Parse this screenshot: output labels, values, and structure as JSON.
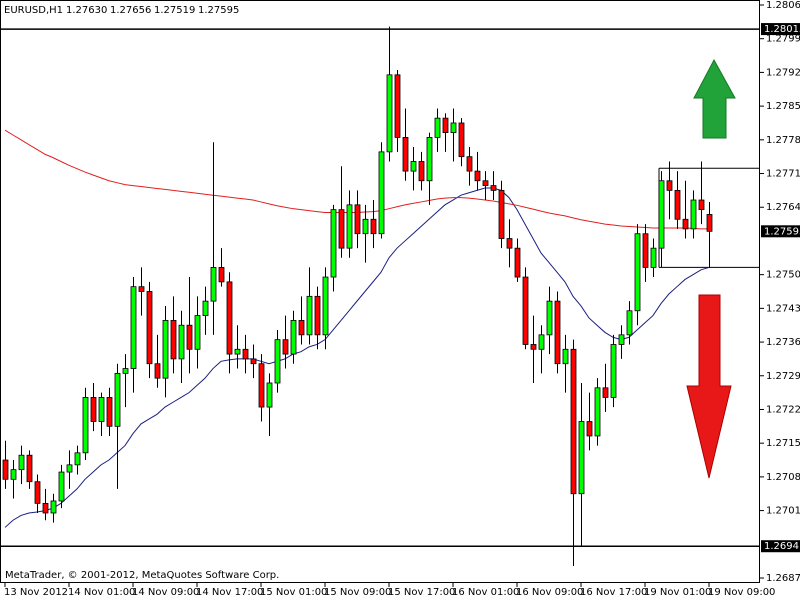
{
  "chart_data": {
    "type": "candlestick",
    "title": "EURUSD,H1",
    "quote": [
      "1.27630",
      "1.27656",
      "1.27519",
      "1.27595"
    ],
    "footer": "MetaTrader, © 2001-2012, MetaQuotes Software Corp.",
    "categories": [
      "13 Nov 2012",
      null,
      null,
      null,
      null,
      null,
      null,
      null,
      "14 Nov 01:00",
      null,
      null,
      null,
      null,
      null,
      null,
      null,
      "14 Nov 09:00",
      null,
      null,
      null,
      null,
      null,
      null,
      null,
      "14 Nov 17:00",
      null,
      null,
      null,
      null,
      null,
      null,
      null,
      "15 Nov 01:00",
      null,
      null,
      null,
      null,
      null,
      null,
      null,
      "15 Nov 09:00",
      null,
      null,
      null,
      null,
      null,
      null,
      null,
      "15 Nov 17:00",
      null,
      null,
      null,
      null,
      null,
      null,
      null,
      "16 Nov 01:00",
      null,
      null,
      null,
      null,
      null,
      null,
      null,
      "16 Nov 09:00",
      null,
      null,
      null,
      null,
      null,
      null,
      null,
      "16 Nov 17:00",
      null,
      null,
      null,
      null,
      null,
      null,
      null,
      "19 Nov 01:00",
      null,
      null,
      null,
      null,
      null,
      null,
      null,
      "19 Nov 09:00"
    ],
    "open": [
      1.2712,
      1.2708,
      1.271,
      1.2713,
      1.27075,
      1.2703,
      1.2701,
      1.27035,
      1.27095,
      1.2711,
      1.27135,
      1.2725,
      1.272,
      1.2725,
      1.2719,
      1.273,
      1.2731,
      1.2748,
      1.2747,
      1.2732,
      1.2729,
      1.2741,
      1.2733,
      1.274,
      1.2735,
      1.2742,
      1.2745,
      1.2752,
      1.2749,
      1.2734,
      1.2735,
      1.2733,
      1.2732,
      1.2723,
      1.2728,
      1.2737,
      1.2734,
      1.2741,
      1.2738,
      1.2746,
      1.2738,
      1.275,
      1.2764,
      1.2756,
      1.2765,
      1.2759,
      1.2762,
      1.2759,
      1.2776,
      1.2792,
      1.2779,
      1.2772,
      1.2774,
      1.277,
      1.2779,
      1.2783,
      1.278,
      1.2782,
      1.2775,
      1.2772,
      1.277,
      1.2769,
      1.2768,
      1.2758,
      1.2756,
      1.275,
      1.2736,
      1.2735,
      1.2738,
      1.2745,
      1.2732,
      1.2735,
      1.2705,
      1.272,
      1.2717,
      1.2727,
      1.2725,
      1.2736,
      1.2738,
      1.2743,
      1.2759,
      1.2752,
      1.2756,
      1.277,
      1.2768,
      1.2762,
      1.276,
      1.2766,
      1.2763
    ],
    "high": [
      1.2716,
      1.2712,
      1.2715,
      1.2714,
      1.2709,
      1.2706,
      1.2705,
      1.2711,
      1.2714,
      1.2715,
      1.2727,
      1.2728,
      1.2726,
      1.2727,
      1.2732,
      1.2734,
      1.275,
      1.2752,
      1.2749,
      1.2738,
      1.2744,
      1.2746,
      1.2743,
      1.275,
      1.2746,
      1.2748,
      1.2778,
      1.2756,
      1.2751,
      1.274,
      1.2738,
      1.2736,
      1.2734,
      1.273,
      1.2739,
      1.2742,
      1.2743,
      1.2746,
      1.2752,
      1.2748,
      1.2752,
      1.2765,
      1.2773,
      1.2768,
      1.2768,
      1.2765,
      1.2766,
      1.2778,
      1.2802,
      1.2793,
      1.2785,
      1.2777,
      1.2776,
      1.278,
      1.2785,
      1.2784,
      1.2785,
      1.2783,
      1.2777,
      1.2776,
      1.2772,
      1.2772,
      1.277,
      1.2762,
      1.2758,
      1.2752,
      1.2742,
      1.274,
      1.2748,
      1.2747,
      1.2738,
      1.2737,
      1.2728,
      1.2726,
      1.2729,
      1.2732,
      1.2738,
      1.274,
      1.2745,
      1.2761,
      1.2761,
      1.2758,
      1.2772,
      1.2774,
      1.2772,
      1.277,
      1.2768,
      1.2774,
      1.27656
    ],
    "low": [
      1.2706,
      1.2704,
      1.2707,
      1.2706,
      1.2701,
      1.26995,
      1.2699,
      1.2702,
      1.2706,
      1.2709,
      1.2712,
      1.2718,
      1.2717,
      1.2717,
      1.2706,
      1.2723,
      1.2726,
      1.2742,
      1.2729,
      1.2727,
      1.2725,
      1.273,
      1.2728,
      1.273,
      1.2731,
      1.2738,
      1.2738,
      1.2748,
      1.273,
      1.2731,
      1.273,
      1.2729,
      1.272,
      1.2717,
      1.2726,
      1.2731,
      1.2732,
      1.2736,
      1.2736,
      1.2735,
      1.2735,
      1.2747,
      1.2754,
      1.2754,
      1.2756,
      1.2753,
      1.2756,
      1.2758,
      1.2774,
      1.2776,
      1.277,
      1.2768,
      1.2768,
      1.2765,
      1.2776,
      1.2776,
      1.2774,
      1.2773,
      1.2769,
      1.2768,
      1.2766,
      1.2766,
      1.2756,
      1.2752,
      1.2749,
      1.2735,
      1.2728,
      1.273,
      1.2734,
      1.273,
      1.2726,
      1.269,
      1.2694,
      1.2714,
      1.2715,
      1.2722,
      1.2723,
      1.2733,
      1.2736,
      1.274,
      1.2749,
      1.275,
      1.2752,
      1.2762,
      1.276,
      1.2758,
      1.2758,
      1.2761,
      1.27519
    ],
    "close": [
      1.2708,
      1.271,
      1.2713,
      1.27075,
      1.2703,
      1.2701,
      1.27035,
      1.27095,
      1.2711,
      1.27135,
      1.2725,
      1.272,
      1.2725,
      1.2719,
      1.273,
      1.2731,
      1.2748,
      1.2747,
      1.2732,
      1.2729,
      1.2741,
      1.2733,
      1.274,
      1.2735,
      1.2742,
      1.2745,
      1.2752,
      1.2749,
      1.2734,
      1.2735,
      1.2733,
      1.2732,
      1.2723,
      1.2728,
      1.2737,
      1.2734,
      1.2741,
      1.2738,
      1.2746,
      1.2738,
      1.275,
      1.2764,
      1.2756,
      1.2765,
      1.2759,
      1.2762,
      1.2759,
      1.2776,
      1.2792,
      1.2779,
      1.2772,
      1.2774,
      1.277,
      1.2779,
      1.2783,
      1.278,
      1.2782,
      1.2775,
      1.2772,
      1.277,
      1.2769,
      1.2768,
      1.2758,
      1.2756,
      1.275,
      1.2736,
      1.2735,
      1.2738,
      1.2745,
      1.2732,
      1.2735,
      1.2705,
      1.272,
      1.2717,
      1.2727,
      1.2725,
      1.2736,
      1.2738,
      1.2743,
      1.2759,
      1.2752,
      1.2756,
      1.277,
      1.2768,
      1.2762,
      1.276,
      1.2766,
      1.2764,
      1.27595
    ],
    "up_color": "#00ff00",
    "down_color": "#ff0000",
    "overlays": [
      {
        "color": "#1a1f80",
        "values": [
          1.2698,
          1.26995,
          1.27005,
          1.2701,
          1.27012,
          1.27015,
          1.2702,
          1.2703,
          1.27045,
          1.2706,
          1.2708,
          1.27095,
          1.2711,
          1.2712,
          1.27135,
          1.2715,
          1.27175,
          1.27195,
          1.27205,
          1.27215,
          1.2723,
          1.2724,
          1.2725,
          1.2726,
          1.27275,
          1.2729,
          1.2731,
          1.27325,
          1.27328,
          1.2733,
          1.2733,
          1.2733,
          1.27325,
          1.2732,
          1.27325,
          1.2733,
          1.2734,
          1.27345,
          1.27355,
          1.2736,
          1.2737,
          1.2739,
          1.2741,
          1.2743,
          1.2745,
          1.2747,
          1.2749,
          1.2751,
          1.2754,
          1.2756,
          1.27575,
          1.2759,
          1.27605,
          1.2762,
          1.27635,
          1.2765,
          1.2766,
          1.2767,
          1.27675,
          1.2768,
          1.27685,
          1.27685,
          1.2768,
          1.27665,
          1.2764,
          1.2761,
          1.2758,
          1.2755,
          1.2753,
          1.2751,
          1.2749,
          1.2746,
          1.2744,
          1.27415,
          1.274,
          1.27385,
          1.27375,
          1.2737,
          1.27375,
          1.2739,
          1.27405,
          1.2742,
          1.27445,
          1.27465,
          1.2748,
          1.27495,
          1.27505,
          1.27515,
          1.2752
        ]
      },
      {
        "color": "#e02020",
        "values": [
          1.27805,
          1.27795,
          1.27785,
          1.27775,
          1.27765,
          1.27755,
          1.27748,
          1.2774,
          1.27732,
          1.27725,
          1.27718,
          1.27712,
          1.27706,
          1.277,
          1.27696,
          1.27692,
          1.2769,
          1.27688,
          1.27686,
          1.27684,
          1.27682,
          1.2768,
          1.27678,
          1.27676,
          1.27674,
          1.27672,
          1.2767,
          1.27668,
          1.27666,
          1.27664,
          1.27662,
          1.2766,
          1.27656,
          1.27652,
          1.27648,
          1.27645,
          1.27642,
          1.2764,
          1.27638,
          1.27636,
          1.27634,
          1.27634,
          1.27634,
          1.27634,
          1.27634,
          1.27635,
          1.27636,
          1.27638,
          1.27642,
          1.27646,
          1.2765,
          1.27653,
          1.27656,
          1.27659,
          1.27662,
          1.27664,
          1.27665,
          1.27665,
          1.27664,
          1.27662,
          1.2766,
          1.27658,
          1.27655,
          1.27652,
          1.27649,
          1.27645,
          1.27641,
          1.27637,
          1.27633,
          1.2763,
          1.27627,
          1.27623,
          1.27619,
          1.27616,
          1.27613,
          1.2761,
          1.27608,
          1.27606,
          1.27605,
          1.27604,
          1.27603,
          1.27602,
          1.27602,
          1.27602,
          1.27602,
          1.27602,
          1.27601,
          1.276,
          1.276
        ]
      }
    ],
    "hlines": [
      1.28015,
      1.26941
    ],
    "box": {
      "top": 1.27726,
      "bottom": 1.2752
    },
    "ylim": [
      1.26875,
      1.28065
    ],
    "yticks": [
      1.28065,
      1.27995,
      1.27925,
      1.27855,
      1.27785,
      1.27715,
      1.27645,
      1.27505,
      1.27435,
      1.27365,
      1.27295,
      1.27225,
      1.27155,
      1.27085,
      1.27015,
      1.26875
    ]
  }
}
